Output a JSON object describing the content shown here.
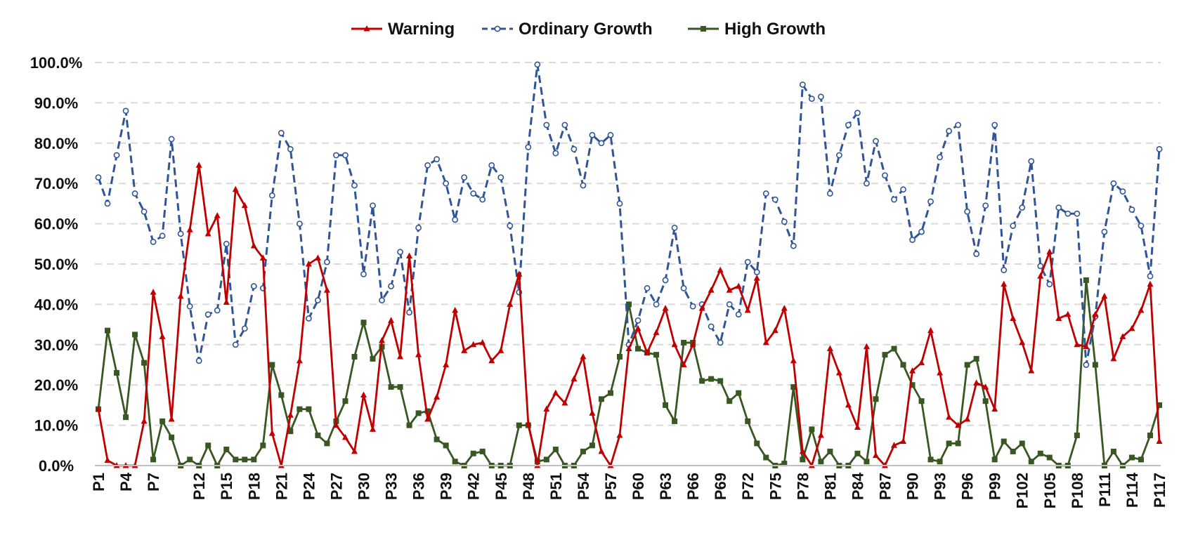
{
  "chart_data": {
    "type": "line",
    "title": "",
    "xlabel": "",
    "ylabel": "",
    "ylim": [
      0,
      100
    ],
    "y_tick_values": [
      0,
      10,
      20,
      30,
      40,
      50,
      60,
      70,
      80,
      90,
      100
    ],
    "y_tick_labels": [
      "0.0%",
      "10.0%",
      "20.0%",
      "30.0%",
      "40.0%",
      "50.0%",
      "60.0%",
      "70.0%",
      "80.0%",
      "90.0%",
      "100.0%"
    ],
    "x_tick_labels": [
      "P1",
      "P4",
      "P7",
      "P12",
      "P15",
      "P18",
      "P21",
      "P24",
      "P27",
      "P30",
      "P33",
      "P36",
      "P39",
      "P42",
      "P45",
      "P48",
      "P51",
      "P54",
      "P57",
      "P60",
      "P63",
      "P66",
      "P69",
      "P72",
      "P75",
      "P78",
      "P81",
      "P84",
      "P87",
      "P90",
      "P93",
      "P96",
      "P99",
      "P102",
      "P105",
      "P108",
      "P111",
      "P114",
      "P117"
    ],
    "legend_position": "top-center",
    "grid": true,
    "series": [
      {
        "name": "Warning",
        "color": "#c00000",
        "marker": "triangle",
        "dashed": false,
        "values": [
          14.0,
          1.3,
          0,
          0,
          0,
          11.0,
          43.0,
          32.0,
          11.5,
          42.0,
          58.5,
          74.5,
          57.5,
          62.0,
          40.5,
          68.5,
          64.5,
          54.5,
          51.5,
          8.0,
          0,
          12.5,
          26.0,
          50.0,
          51.5,
          43.5,
          10.0,
          7.0,
          3.5,
          17.5,
          9.0,
          31.0,
          36.0,
          27.0,
          52.0,
          27.5,
          11.5,
          17.0,
          25.0,
          38.5,
          28.5,
          30.0,
          30.5,
          26.0,
          28.5,
          40.0,
          47.5,
          10.5,
          0,
          14.0,
          18.0,
          15.5,
          21.5,
          27.0,
          13.0,
          3.5,
          0,
          7.5,
          29.0,
          34.0,
          28.0,
          33.0,
          39.0,
          30.0,
          25.0,
          30.0,
          39.0,
          43.5,
          48.5,
          43.5,
          44.5,
          38.5,
          46.5,
          30.5,
          33.5,
          39.0,
          26.0,
          3.5,
          0,
          7.5,
          29.0,
          23.0,
          15.0,
          9.5,
          29.5,
          2.5,
          0,
          5.0,
          6.0,
          23.5,
          25.5,
          33.5,
          23.0,
          12.0,
          10.0,
          11.5,
          20.5,
          19.5,
          14.0,
          45.0,
          36.5,
          30.5,
          23.5,
          47.0,
          53.0,
          36.5,
          37.5,
          30.0,
          29.5,
          37.5,
          42.0,
          26.5,
          32.0,
          34.0,
          38.5,
          45.0,
          6.0
        ]
      },
      {
        "name": "Ordinary Growth",
        "color": "#2f5597",
        "marker": "circle",
        "dashed": true,
        "values": [
          71.5,
          65.0,
          77.0,
          88.0,
          67.5,
          63.0,
          55.5,
          57.0,
          81.0,
          57.5,
          39.5,
          26.0,
          37.5,
          38.5,
          55.0,
          30.0,
          34.0,
          44.5,
          44.0,
          67.0,
          82.5,
          78.5,
          60.0,
          36.5,
          41.0,
          50.5,
          77.0,
          77.0,
          69.5,
          47.5,
          64.5,
          41.0,
          44.5,
          53.0,
          38.0,
          59.0,
          74.5,
          76.0,
          70.0,
          61.0,
          71.5,
          67.5,
          66.0,
          74.5,
          71.5,
          59.5,
          43.0,
          79.0,
          99.5,
          84.5,
          77.5,
          84.5,
          78.5,
          69.5,
          82.0,
          80.0,
          82.0,
          65.0,
          30.0,
          36.0,
          44.0,
          40.0,
          46.0,
          59.0,
          44.0,
          39.5,
          40.0,
          34.5,
          30.5,
          40.0,
          37.5,
          50.5,
          48.0,
          67.5,
          66.0,
          60.5,
          54.5,
          94.5,
          91.0,
          91.5,
          67.5,
          77.0,
          84.5,
          87.5,
          70.0,
          80.5,
          72.0,
          66.0,
          68.5,
          56.0,
          58.0,
          65.5,
          76.5,
          83.0,
          84.5,
          63.0,
          52.5,
          64.5,
          84.5,
          48.5,
          59.5,
          64.0,
          75.5,
          49.5,
          45.0,
          64.0,
          62.5,
          62.5,
          25.0,
          37.0,
          58.0,
          70.0,
          68.0,
          63.5,
          59.5,
          47.0,
          78.5
        ]
      },
      {
        "name": "High Growth",
        "color": "#385723",
        "marker": "square",
        "dashed": false,
        "values": [
          14.0,
          33.5,
          23.0,
          12.0,
          32.5,
          25.5,
          1.5,
          11.0,
          7.0,
          0,
          1.5,
          0,
          5.0,
          0,
          4.0,
          1.5,
          1.5,
          1.5,
          5.0,
          25.0,
          17.5,
          8.5,
          14.0,
          14.0,
          7.5,
          5.5,
          11.0,
          16.0,
          27.0,
          35.5,
          26.5,
          29.5,
          19.5,
          19.5,
          10.0,
          13.0,
          13.5,
          6.5,
          5.0,
          1.0,
          0,
          3.0,
          3.5,
          0,
          0,
          0,
          10.0,
          10.0,
          1.0,
          1.5,
          4.0,
          0,
          0,
          3.5,
          5.0,
          16.5,
          18.0,
          27.0,
          40.0,
          29.0,
          28.0,
          27.5,
          15.0,
          11.0,
          30.5,
          30.5,
          21.0,
          21.5,
          21.0,
          16.0,
          18.0,
          11.0,
          5.5,
          2.0,
          0,
          0.5,
          19.5,
          1.5,
          9.0,
          1.0,
          3.5,
          0,
          0,
          3.0,
          1.0,
          16.5,
          27.5,
          29.0,
          25.0,
          20.0,
          16.0,
          1.5,
          1.0,
          5.5,
          5.5,
          25.0,
          26.5,
          16.0,
          1.5,
          6.0,
          3.5,
          5.5,
          1.0,
          3.0,
          2.0,
          0,
          0,
          7.5,
          46.0,
          25.0,
          0,
          3.5,
          0,
          2.0,
          1.5,
          7.5,
          15.0
        ]
      }
    ]
  }
}
